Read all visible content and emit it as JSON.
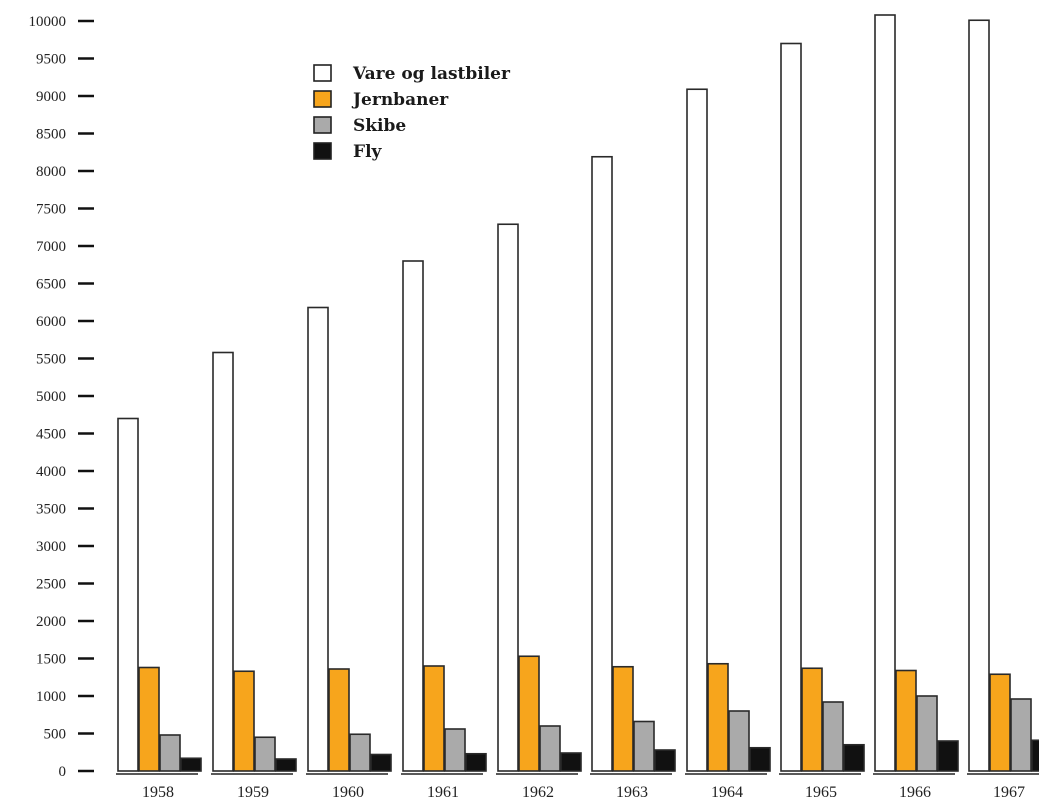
{
  "chart_data": {
    "type": "bar",
    "categories": [
      "1958",
      "1959",
      "1960",
      "1961",
      "1962",
      "1963",
      "1964",
      "1965",
      "1966",
      "1967"
    ],
    "series": [
      {
        "name": "Vare og lastbiler",
        "color": "#ffffff",
        "values": [
          4700,
          5580,
          6180,
          6800,
          7290,
          8190,
          9090,
          9700,
          10080,
          10010
        ]
      },
      {
        "name": "Jernbaner",
        "color": "#f7a51c",
        "values": [
          1380,
          1330,
          1360,
          1400,
          1530,
          1390,
          1430,
          1370,
          1340,
          1290
        ]
      },
      {
        "name": "Skibe",
        "color": "#aaaaaa",
        "values": [
          480,
          450,
          490,
          560,
          600,
          660,
          800,
          920,
          1000,
          960
        ]
      },
      {
        "name": "Fly",
        "color": "#111111",
        "values": [
          170,
          160,
          220,
          230,
          240,
          280,
          310,
          350,
          400,
          410
        ]
      }
    ],
    "yticks": [
      "0",
      "500",
      "1000",
      "1500",
      "2000",
      "2500",
      "3000",
      "3500",
      "4000",
      "4500",
      "5000",
      "5500",
      "6000",
      "6500",
      "7000",
      "7500",
      "8000",
      "8500",
      "9000",
      "9500",
      "10000"
    ],
    "ylim": [
      0,
      10000
    ],
    "grid": false,
    "legend": "top-center"
  }
}
